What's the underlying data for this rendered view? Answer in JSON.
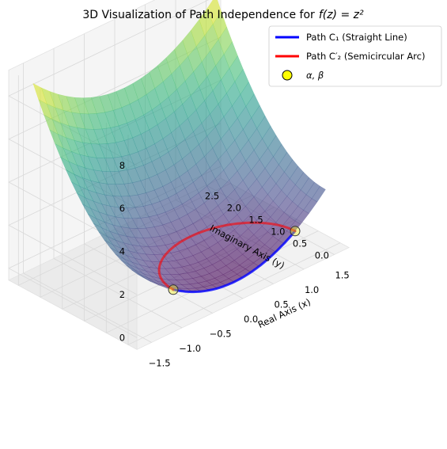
{
  "chart_data": {
    "type": "surface3d",
    "title": "3D Visualization of Path Independence for",
    "title_math": "f(z) = z²",
    "xlabel": "Real Axis (x)",
    "ylabel": "Imaginary Axis (y)",
    "zlabel": "",
    "x_ticks": [
      "−1.5",
      "−1.0",
      "−0.5",
      "0.0",
      "0.5",
      "1.0",
      "1.5"
    ],
    "y_ticks": [
      "0.0",
      "0.5",
      "1.0",
      "1.5",
      "2.0",
      "2.5"
    ],
    "z_ticks": [
      "0",
      "2",
      "4",
      "6",
      "8"
    ],
    "x_range": [
      -1.5,
      1.5
    ],
    "y_range": [
      0,
      2.5
    ],
    "z_range": [
      0,
      8
    ],
    "surface": {
      "colormap": "viridis",
      "alpha": 0.6
    },
    "legend": {
      "placement": "top-right",
      "entries": [
        {
          "label": "Path C₁ (Straight Line)",
          "color": "#0000ff",
          "kind": "line"
        },
        {
          "label": "Path C′₂ (Semicircular Arc)",
          "color": "#ff0000",
          "kind": "line"
        },
        {
          "label": "α, β",
          "color": "#ffff00",
          "kind": "marker"
        }
      ]
    },
    "series": [
      {
        "name": "Path C₁ (Straight Line)",
        "color": "#0000ff",
        "path": {
          "from": [
            -1,
            0
          ],
          "to": [
            1,
            0
          ]
        }
      },
      {
        "name": "Path C′₂ (Semicircular Arc)",
        "color": "#ff0000",
        "path": {
          "center": [
            0,
            0
          ],
          "radius": 1,
          "from_angle_deg": 180,
          "to_angle_deg": 0
        }
      }
    ],
    "points": [
      {
        "x": -1,
        "y": 0,
        "color": "#ffff00"
      },
      {
        "x": 1,
        "y": 0,
        "color": "#ffff00"
      }
    ]
  }
}
